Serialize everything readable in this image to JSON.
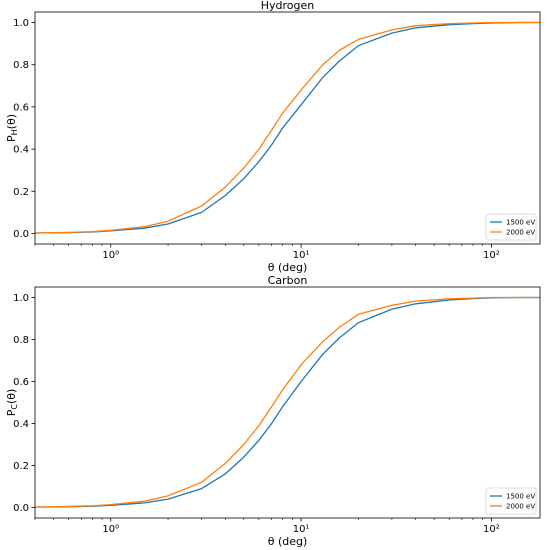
{
  "chart_data": [
    {
      "type": "line",
      "title": "Hydrogen",
      "xlabel": "θ (deg)",
      "ylabel": "P_H(θ)",
      "ylabel_main": "P",
      "ylabel_sub": "H",
      "ylabel_arg": "(θ)",
      "xscale": "log",
      "xlim": [
        0.4,
        180
      ],
      "ylim": [
        -0.05,
        1.05
      ],
      "xticks": [
        1,
        10,
        100
      ],
      "xtick_labels": [
        "10⁰",
        "10¹",
        "10²"
      ],
      "yticks": [
        0.0,
        0.2,
        0.4,
        0.6,
        0.8,
        1.0
      ],
      "ytick_labels": [
        "0.0",
        "0.2",
        "0.4",
        "0.6",
        "0.8",
        "1.0"
      ],
      "legend_position": "lower-right",
      "grid": false,
      "x": [
        0.4,
        0.6,
        0.8,
        1,
        1.5,
        2,
        3,
        4,
        5,
        6,
        7,
        8,
        10,
        13,
        16,
        20,
        30,
        40,
        60,
        80,
        100,
        140,
        180
      ],
      "series": [
        {
          "name": "1500 eV",
          "color": "#1f77b4",
          "values": [
            0.002,
            0.004,
            0.007,
            0.012,
            0.025,
            0.045,
            0.1,
            0.18,
            0.26,
            0.34,
            0.42,
            0.5,
            0.61,
            0.74,
            0.82,
            0.89,
            0.95,
            0.975,
            0.99,
            0.995,
            0.998,
            1.0,
            1.0
          ]
        },
        {
          "name": "2000 eV",
          "color": "#ff7f0e",
          "values": [
            0.002,
            0.005,
            0.009,
            0.015,
            0.032,
            0.058,
            0.13,
            0.22,
            0.31,
            0.4,
            0.49,
            0.57,
            0.68,
            0.8,
            0.87,
            0.92,
            0.965,
            0.985,
            0.995,
            0.998,
            1.0,
            1.0,
            1.0
          ]
        }
      ]
    },
    {
      "type": "line",
      "title": "Carbon",
      "xlabel": "θ (deg)",
      "ylabel": "P_C(θ)",
      "ylabel_main": "P",
      "ylabel_sub": "C",
      "ylabel_arg": "(θ)",
      "xscale": "log",
      "xlim": [
        0.4,
        180
      ],
      "ylim": [
        -0.05,
        1.05
      ],
      "xticks": [
        1,
        10,
        100
      ],
      "xtick_labels": [
        "10⁰",
        "10¹",
        "10²"
      ],
      "yticks": [
        0.0,
        0.2,
        0.4,
        0.6,
        0.8,
        1.0
      ],
      "ytick_labels": [
        "0.0",
        "0.2",
        "0.4",
        "0.6",
        "0.8",
        "1.0"
      ],
      "legend_position": "lower-right",
      "grid": false,
      "x": [
        0.4,
        0.6,
        0.8,
        1,
        1.5,
        2,
        3,
        4,
        5,
        6,
        7,
        8,
        10,
        13,
        16,
        20,
        30,
        40,
        60,
        80,
        100,
        140,
        180
      ],
      "series": [
        {
          "name": "1500 eV",
          "color": "#1f77b4",
          "values": [
            0.002,
            0.004,
            0.006,
            0.01,
            0.022,
            0.04,
            0.09,
            0.16,
            0.24,
            0.32,
            0.4,
            0.48,
            0.6,
            0.73,
            0.81,
            0.88,
            0.945,
            0.97,
            0.988,
            0.995,
            0.998,
            1.0,
            1.0
          ]
        },
        {
          "name": "2000 eV",
          "color": "#ff7f0e",
          "values": [
            0.002,
            0.005,
            0.008,
            0.014,
            0.03,
            0.055,
            0.12,
            0.21,
            0.3,
            0.39,
            0.48,
            0.56,
            0.68,
            0.79,
            0.86,
            0.92,
            0.963,
            0.983,
            0.994,
            0.997,
            1.0,
            1.0,
            1.0
          ]
        }
      ]
    }
  ]
}
